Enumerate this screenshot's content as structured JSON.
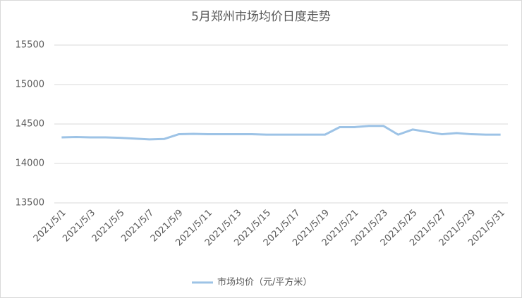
{
  "chart_data": {
    "type": "line",
    "title": "5月郑州市场均价日度走势",
    "categories": [
      "2021/5/1",
      null,
      "2021/5/3",
      null,
      "2021/5/5",
      null,
      "2021/5/7",
      null,
      "2021/5/9",
      null,
      "2021/5/11",
      null,
      "2021/5/13",
      null,
      "2021/5/15",
      null,
      "2021/5/17",
      null,
      "2021/5/19",
      null,
      "2021/5/21",
      null,
      "2021/5/23",
      null,
      "2021/5/25",
      null,
      "2021/5/27",
      null,
      "2021/5/29",
      null,
      "2021/5/31"
    ],
    "series": [
      {
        "name": "市场均价（元/平方米）",
        "color": "#9dc3e6",
        "values": [
          14330,
          14335,
          14330,
          14330,
          14325,
          14315,
          14305,
          14310,
          14370,
          14375,
          14370,
          14370,
          14370,
          14370,
          14365,
          14365,
          14365,
          14365,
          14365,
          14460,
          14460,
          14475,
          14475,
          14365,
          14430,
          14400,
          14370,
          14385,
          14370,
          14365,
          14365
        ]
      }
    ],
    "ylim": [
      13500,
      15500
    ],
    "yticks": [
      13500,
      14000,
      14500,
      15000,
      15500
    ],
    "grid": true,
    "legend": "bottom"
  }
}
